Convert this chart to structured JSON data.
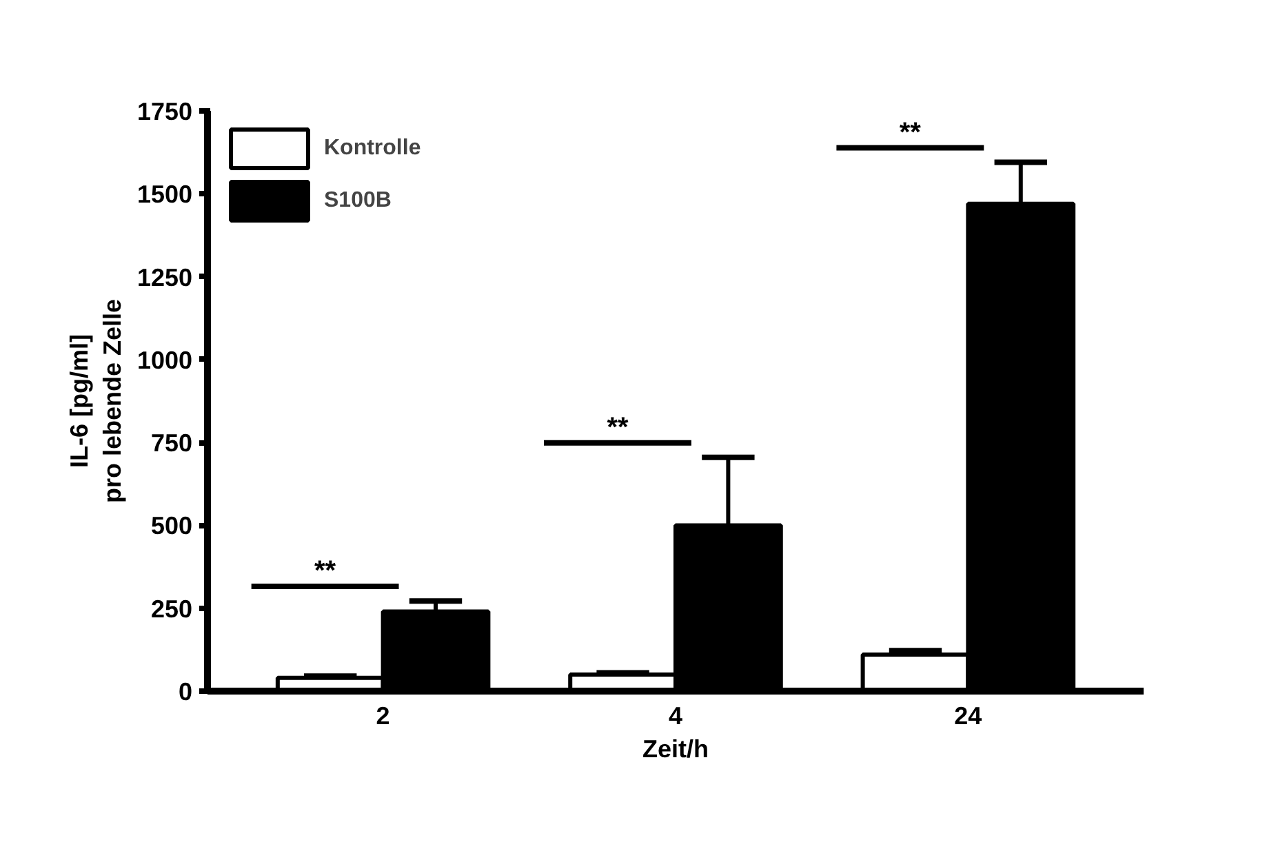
{
  "chart_data": {
    "type": "bar",
    "xlabel": "Zeit/h",
    "ylabel": "IL-6 [pg/ml]\npro lebende Zelle",
    "categories": [
      "2",
      "4",
      "24"
    ],
    "series": [
      {
        "name": "Kontrolle",
        "color": "#ffffff",
        "values": [
          40,
          50,
          110
        ],
        "errors": [
          [
            40,
            45
          ],
          [
            50,
            55
          ],
          [
            110,
            122
          ]
        ]
      },
      {
        "name": "S100B",
        "color": "#000000",
        "values": [
          240,
          500,
          1470
        ],
        "errors": [
          [
            240,
            272
          ],
          [
            500,
            705
          ],
          [
            1470,
            1595
          ]
        ]
      }
    ],
    "ylim": [
      0,
      1750
    ],
    "yticks": [
      0,
      250,
      500,
      750,
      1000,
      1250,
      1500,
      1750
    ],
    "annotations": [
      "**",
      "**",
      "**"
    ],
    "grid": false,
    "legend": "top left"
  }
}
